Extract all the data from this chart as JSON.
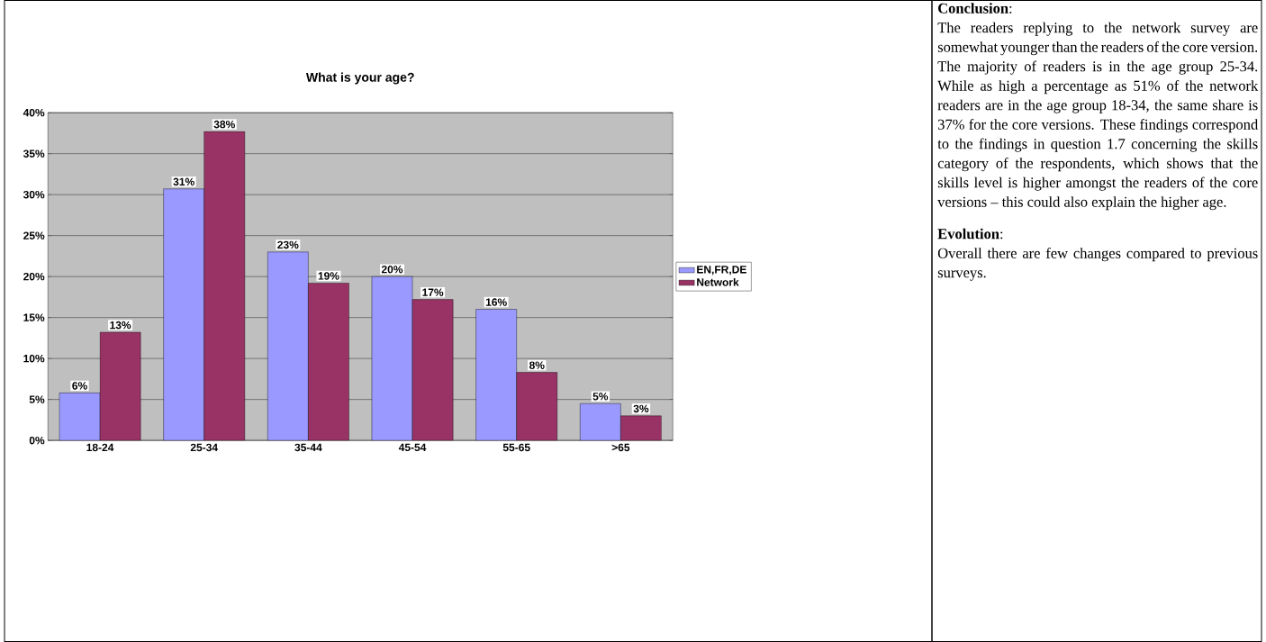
{
  "chart_data": {
    "type": "bar",
    "title": "What is your age?",
    "categories": [
      "18-24",
      "25-34",
      "35-44",
      "45-54",
      "55-65",
      ">65"
    ],
    "series": [
      {
        "name": "EN,FR,DE",
        "color": "#9999ff",
        "values": [
          5.8,
          30.7,
          23,
          20,
          16,
          4.5
        ],
        "value_labels": [
          "6%",
          "31%",
          "23%",
          "20%",
          "16%",
          "5%"
        ]
      },
      {
        "name": "Network",
        "color": "#993366",
        "values": [
          13.2,
          37.7,
          19.2,
          17.2,
          8.3,
          3
        ],
        "value_labels": [
          "13%",
          "38%",
          "19%",
          "17%",
          "8%",
          "3%"
        ]
      }
    ],
    "ylim": [
      0,
      40
    ],
    "yticks": [
      {
        "value": 0,
        "label": "0%"
      },
      {
        "value": 5,
        "label": "5%"
      },
      {
        "value": 10,
        "label": "10%"
      },
      {
        "value": 15,
        "label": "15%"
      },
      {
        "value": 20,
        "label": "20%"
      },
      {
        "value": 25,
        "label": "25%"
      },
      {
        "value": 30,
        "label": "30%"
      },
      {
        "value": 35,
        "label": "35%"
      },
      {
        "value": 40,
        "label": "40%"
      }
    ],
    "grid": "y",
    "legend": "right",
    "annotations": [
      "**Conclusion**:",
      "The readers replying to the network survey are somewhat younger than the readers of the core version. The majority of readers is in the age group 25-34. While as high a percentage as 51% of the network readers are in the age group 18-34, the same share is 37% for the core versions. These findings correspond to the findings in question 1.7 concerning the skills category of the respondents, which shows that the skills level is higher amongst the readers of the core versions – this could also explain the higher age.",
      "**Evolution**:",
      "Overall there are few changes compared to previous surveys."
    ]
  }
}
